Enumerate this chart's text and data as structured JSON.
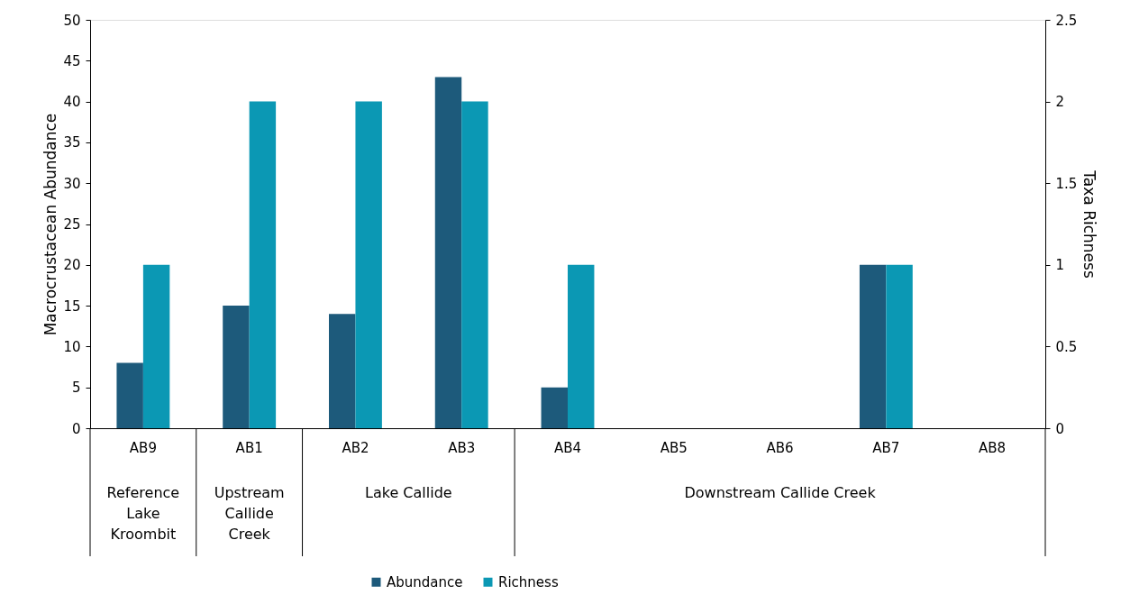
{
  "chart_data": {
    "type": "bar",
    "categories": [
      "AB9",
      "AB1",
      "AB2",
      "AB3",
      "AB4",
      "AB5",
      "AB6",
      "AB7",
      "AB8"
    ],
    "series": [
      {
        "name": "Abundance",
        "color": "#1d5a7b",
        "values": [
          8,
          15,
          14,
          43,
          5,
          0,
          0,
          20,
          0
        ]
      },
      {
        "name": "Richness",
        "color": "#0b98b4",
        "axis": "y2",
        "values": [
          1,
          2,
          2,
          2,
          1,
          0,
          0,
          1,
          0
        ]
      }
    ],
    "ylabel": "Macrocrustacean Abundance",
    "y2label": "Taxa Richness",
    "ylim": [
      0,
      50
    ],
    "yticks": [
      0,
      5,
      10,
      15,
      20,
      25,
      30,
      35,
      40,
      45,
      50
    ],
    "y2lim": [
      0,
      2.5
    ],
    "y2ticks": [
      0,
      0.5,
      1,
      1.5,
      2,
      2.5
    ],
    "annotations": [
      "Reference Lake Kroombit",
      "Upstream Callide Creek",
      "Lake Callide",
      "Downstream Callide Creek"
    ],
    "legend": "bottom",
    "grid": false
  }
}
